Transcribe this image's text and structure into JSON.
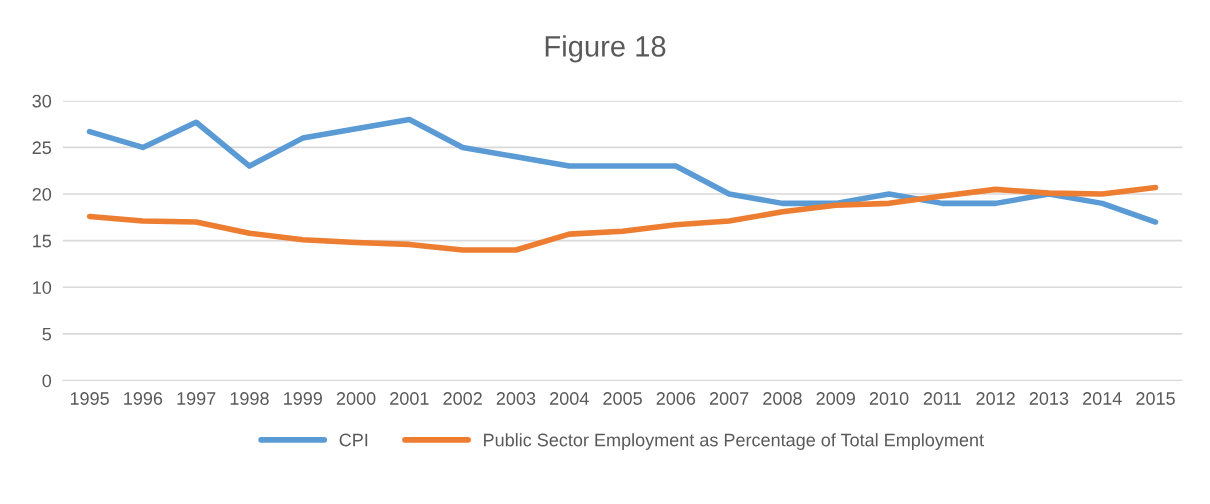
{
  "chart_data": {
    "type": "line",
    "title": "Figure 18",
    "categories": [
      "1995",
      "1996",
      "1997",
      "1998",
      "1999",
      "2000",
      "2001",
      "2002",
      "2003",
      "2004",
      "2005",
      "2006",
      "2007",
      "2008",
      "2009",
      "2010",
      "2011",
      "2012",
      "2013",
      "2014",
      "2015"
    ],
    "series": [
      {
        "name": "CPI",
        "color": "#5b9bd5",
        "values": [
          26.7,
          25,
          27.7,
          23,
          26,
          27,
          28,
          25,
          24,
          23,
          23,
          23,
          20,
          19,
          19,
          20,
          19,
          19,
          20,
          19,
          17
        ]
      },
      {
        "name": "Public Sector Employment as Percentage of Total Employment",
        "color": "#ed7d31",
        "values": [
          17.6,
          17.1,
          17.0,
          15.8,
          15.1,
          14.8,
          14.6,
          14.0,
          14.0,
          15.7,
          16.0,
          16.7,
          17.1,
          18.1,
          18.8,
          19.0,
          19.8,
          20.5,
          20.1,
          20.0,
          20.7
        ]
      }
    ],
    "ylim": [
      0,
      30
    ],
    "yticks": [
      0,
      5,
      10,
      15,
      20,
      25,
      30
    ],
    "grid": "y",
    "legend": "bottom",
    "marker": "none",
    "line_style": "solid"
  }
}
